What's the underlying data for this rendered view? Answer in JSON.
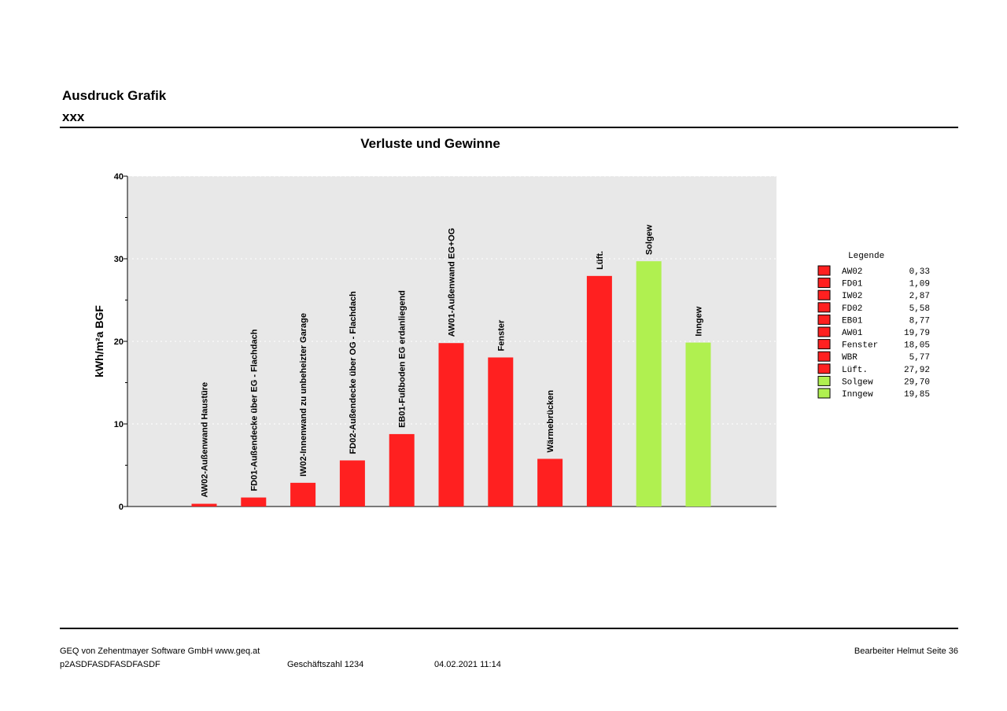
{
  "header": {
    "title": "Ausdruck Grafik",
    "subtitle": "xxx"
  },
  "chart_data": {
    "type": "bar",
    "title": "Verluste und Gewinne",
    "ylabel": "kWh/m²a BGF",
    "xlabel": "",
    "ylim": [
      0,
      40
    ],
    "yticks": [
      0,
      10,
      20,
      30,
      40
    ],
    "grid": true,
    "legend_position": "right",
    "categories": [
      "AW02-Außenwand Haustüre",
      "FD01-Außendecke über EG - Flachdach",
      "IW02-Innenwand zu unbeheizter Garage",
      "FD02-Außendecke über OG - Flachdach",
      "EB01-Fußboden EG erdanliegend",
      "AW01-Außenwand EG+OG",
      "Fenster",
      "Wärmebrücken",
      "Lüft.",
      "Solgew",
      "Inngew"
    ],
    "values": [
      0.33,
      1.09,
      2.87,
      5.58,
      8.77,
      19.79,
      18.05,
      5.77,
      27.92,
      29.7,
      19.85
    ],
    "colors": [
      "#ff2020",
      "#ff2020",
      "#ff2020",
      "#ff2020",
      "#ff2020",
      "#ff2020",
      "#ff2020",
      "#ff2020",
      "#ff2020",
      "#b0f050",
      "#b0f050"
    ],
    "legend": {
      "title": "Legende",
      "entries": [
        {
          "name": "AW02",
          "value": "0,33",
          "color": "#ff2020"
        },
        {
          "name": "FD01",
          "value": "1,09",
          "color": "#ff2020"
        },
        {
          "name": "IW02",
          "value": "2,87",
          "color": "#ff2020"
        },
        {
          "name": "FD02",
          "value": "5,58",
          "color": "#ff2020"
        },
        {
          "name": "EB01",
          "value": "8,77",
          "color": "#ff2020"
        },
        {
          "name": "AW01",
          "value": "19,79",
          "color": "#ff2020"
        },
        {
          "name": "Fenster",
          "value": "18,05",
          "color": "#ff2020"
        },
        {
          "name": "WBR",
          "value": "5,77",
          "color": "#ff2020"
        },
        {
          "name": "Lüft.",
          "value": "27,92",
          "color": "#ff2020"
        },
        {
          "name": "Solgew",
          "value": "29,70",
          "color": "#b0f050"
        },
        {
          "name": "Inngew",
          "value": "19,85",
          "color": "#b0f050"
        }
      ]
    }
  },
  "footer": {
    "company": "GEQ von Zehentmayer Software GmbH www.geq.at",
    "project": "p2ASDFASDFASDFASDF",
    "reference": "Geschäftszahl 1234",
    "datetime": "04.02.2021 11:14",
    "editor": "Bearbeiter Helmut Seite 36"
  }
}
